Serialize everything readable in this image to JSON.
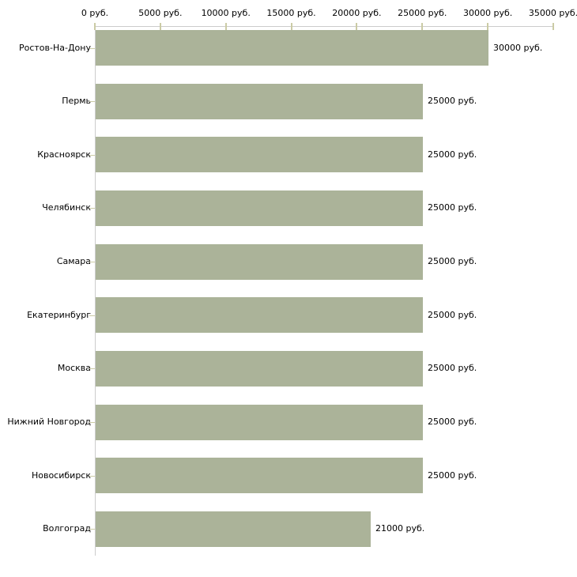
{
  "chart_data": {
    "type": "bar",
    "orientation": "horizontal",
    "title": "",
    "xlabel": "",
    "ylabel": "",
    "xlim": [
      0,
      35000
    ],
    "grid": "off",
    "legend": "none",
    "categories": [
      "Ростов-На-Дону",
      "Пермь",
      "Красноярск",
      "Челябинск",
      "Самара",
      "Екатеринбург",
      "Москва",
      "Нижний Новгород",
      "Новосибирск",
      "Волгоград"
    ],
    "values": [
      30000,
      25000,
      25000,
      25000,
      25000,
      25000,
      25000,
      25000,
      25000,
      21000
    ],
    "value_labels": [
      "30000 руб.",
      "25000 руб.",
      "25000 руб.",
      "25000 руб.",
      "25000 руб.",
      "25000 руб.",
      "25000 руб.",
      "25000 руб.",
      "25000 руб.",
      "21000 руб."
    ],
    "x_ticks": [
      0,
      5000,
      10000,
      15000,
      20000,
      25000,
      30000,
      35000
    ],
    "x_tick_labels": [
      "0 руб.",
      "5000 руб.",
      "10000 руб.",
      "15000 руб.",
      "20000 руб.",
      "25000 руб.",
      "30000 руб.",
      "35000 руб."
    ],
    "colors": {
      "bar": "#abb399",
      "axis_line": "#cccccc",
      "tick_mark": "#cbcba5",
      "text": "#000000",
      "background": "#ffffff"
    }
  }
}
